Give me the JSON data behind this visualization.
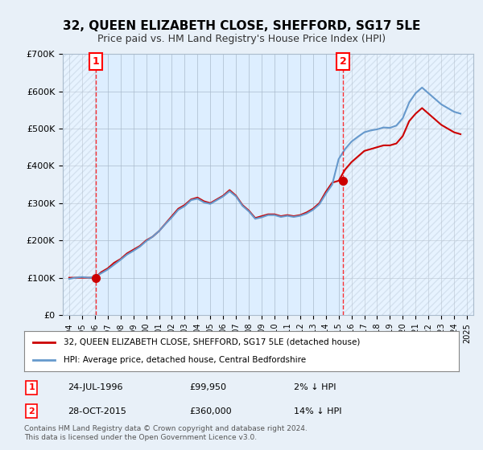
{
  "title": "32, QUEEN ELIZABETH CLOSE, SHEFFORD, SG17 5LE",
  "subtitle": "Price paid vs. HM Land Registry's House Price Index (HPI)",
  "line1_label": "32, QUEEN ELIZABETH CLOSE, SHEFFORD, SG17 5LE (detached house)",
  "line2_label": "HPI: Average price, detached house, Central Bedfordshire",
  "footnote": "Contains HM Land Registry data © Crown copyright and database right 2024.\nThis data is licensed under the Open Government Licence v3.0.",
  "sale1_date": "1996-07-24",
  "sale1_price": 99950,
  "sale1_label": "1",
  "sale1_annotation": "24-JUL-1996",
  "sale1_price_str": "£99,950",
  "sale1_hpi": "2% ↓ HPI",
  "sale2_date": "2015-10-28",
  "sale2_price": 360000,
  "sale2_label": "2",
  "sale2_annotation": "28-OCT-2015",
  "sale2_price_str": "£360,000",
  "sale2_hpi": "14% ↓ HPI",
  "bg_color": "#ddeeff",
  "plot_bg_color": "#ddeeff",
  "line1_color": "#cc0000",
  "line2_color": "#6699cc",
  "hatch_color": "#bbccdd",
  "grid_color": "#aabbcc",
  "ylim": [
    0,
    700000
  ],
  "yticks": [
    0,
    100000,
    200000,
    300000,
    400000,
    500000,
    600000,
    700000
  ],
  "ytick_labels": [
    "£0",
    "£100K",
    "£200K",
    "£300K",
    "£400K",
    "£500K",
    "£600K",
    "£700K"
  ],
  "xstart": 1994.0,
  "xend": 2026.0,
  "red_line_years": [
    1994.5,
    1995.0,
    1995.5,
    1996.0,
    1996.5,
    1997.0,
    1997.5,
    1998.0,
    1998.5,
    1999.0,
    1999.5,
    2000.0,
    2000.5,
    2001.0,
    2001.5,
    2002.0,
    2002.5,
    2003.0,
    2003.5,
    2004.0,
    2004.5,
    2005.0,
    2005.5,
    2006.0,
    2006.5,
    2007.0,
    2007.5,
    2008.0,
    2008.5,
    2009.0,
    2009.5,
    2010.0,
    2010.5,
    2011.0,
    2011.5,
    2012.0,
    2012.5,
    2013.0,
    2013.5,
    2014.0,
    2014.5,
    2015.0,
    2015.5,
    2016.0,
    2016.5,
    2017.0,
    2017.5,
    2018.0,
    2018.5,
    2019.0,
    2019.5,
    2020.0,
    2020.5,
    2021.0,
    2021.5,
    2022.0,
    2022.5,
    2023.0,
    2023.5,
    2024.0,
    2024.5,
    2025.0
  ],
  "red_line_values": [
    99950,
    99950,
    99950,
    99950,
    99950,
    115000,
    125000,
    140000,
    150000,
    165000,
    175000,
    185000,
    200000,
    210000,
    225000,
    245000,
    265000,
    285000,
    295000,
    310000,
    315000,
    305000,
    300000,
    310000,
    320000,
    335000,
    320000,
    295000,
    280000,
    260000,
    265000,
    270000,
    270000,
    265000,
    268000,
    265000,
    268000,
    275000,
    285000,
    300000,
    330000,
    355000,
    360000,
    390000,
    410000,
    425000,
    440000,
    445000,
    450000,
    455000,
    455000,
    460000,
    480000,
    520000,
    540000,
    555000,
    540000,
    525000,
    510000,
    500000,
    490000,
    485000
  ],
  "blue_line_years": [
    1994.5,
    1995.0,
    1995.5,
    1996.0,
    1996.5,
    1997.0,
    1997.5,
    1998.0,
    1998.5,
    1999.0,
    1999.5,
    2000.0,
    2000.5,
    2001.0,
    2001.5,
    2002.0,
    2002.5,
    2003.0,
    2003.5,
    2004.0,
    2004.5,
    2005.0,
    2005.5,
    2006.0,
    2006.5,
    2007.0,
    2007.5,
    2008.0,
    2008.5,
    2009.0,
    2009.5,
    2010.0,
    2010.5,
    2011.0,
    2011.5,
    2012.0,
    2012.5,
    2013.0,
    2013.5,
    2014.0,
    2014.5,
    2015.0,
    2015.5,
    2016.0,
    2016.5,
    2017.0,
    2017.5,
    2018.0,
    2018.5,
    2019.0,
    2019.5,
    2020.0,
    2020.5,
    2021.0,
    2021.5,
    2022.0,
    2022.5,
    2023.0,
    2023.5,
    2024.0,
    2024.5,
    2025.0
  ],
  "blue_line_values": [
    97000,
    100000,
    102000,
    100000,
    102000,
    112000,
    122000,
    135000,
    148000,
    162000,
    172000,
    183000,
    198000,
    210000,
    225000,
    244000,
    262000,
    282000,
    292000,
    308000,
    312000,
    302000,
    298000,
    308000,
    318000,
    332000,
    318000,
    293000,
    278000,
    258000,
    262000,
    268000,
    268000,
    263000,
    266000,
    263000,
    266000,
    272000,
    282000,
    297000,
    325000,
    350000,
    418000,
    445000,
    465000,
    478000,
    490000,
    495000,
    498000,
    503000,
    502000,
    508000,
    528000,
    570000,
    595000,
    610000,
    595000,
    580000,
    565000,
    555000,
    545000,
    540000
  ]
}
